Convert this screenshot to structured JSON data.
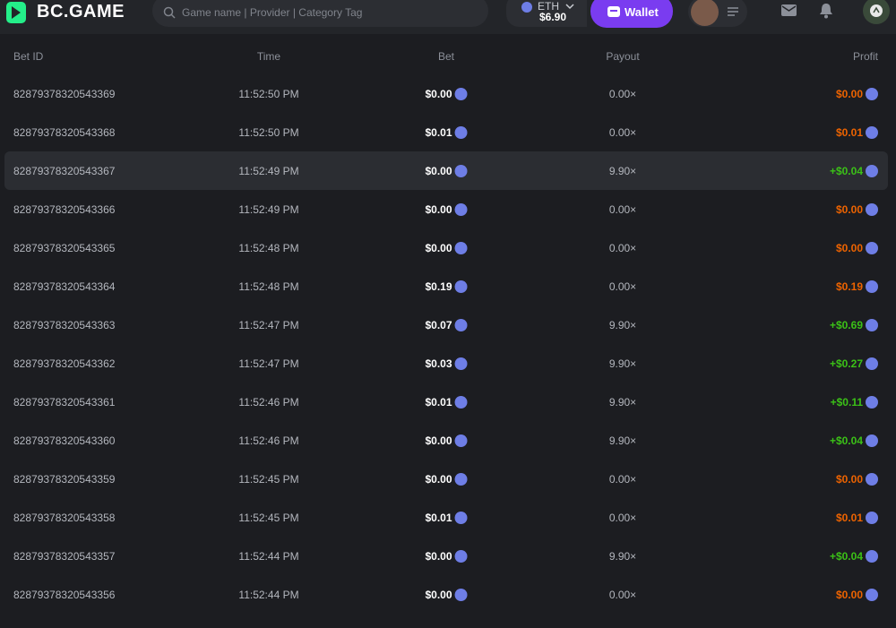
{
  "header": {
    "logo": "BC.GAME",
    "search_placeholder": "Game name | Provider | Category Tag",
    "currency": "ETH",
    "balance": "$6.90",
    "wallet_button": "Wallet"
  },
  "table": {
    "columns": [
      "Bet ID",
      "Time",
      "Bet",
      "Payout",
      "Profit"
    ],
    "rows": [
      [
        "82879378320543369",
        "11:52:50 PM",
        "$0.00",
        "0.00×",
        "$0.00"
      ],
      [
        "82879378320543368",
        "11:52:50 PM",
        "$0.01",
        "0.00×",
        "$0.01"
      ],
      [
        "82879378320543367",
        "11:52:49 PM",
        "$0.00",
        "9.90×",
        "+$0.04"
      ],
      [
        "82879378320543366",
        "11:52:49 PM",
        "$0.00",
        "0.00×",
        "$0.00"
      ],
      [
        "82879378320543365",
        "11:52:48 PM",
        "$0.00",
        "0.00×",
        "$0.00"
      ],
      [
        "82879378320543364",
        "11:52:48 PM",
        "$0.19",
        "0.00×",
        "$0.19"
      ],
      [
        "82879378320543363",
        "11:52:47 PM",
        "$0.07",
        "9.90×",
        "+$0.69"
      ],
      [
        "82879378320543362",
        "11:52:47 PM",
        "$0.03",
        "9.90×",
        "+$0.27"
      ],
      [
        "82879378320543361",
        "11:52:46 PM",
        "$0.01",
        "9.90×",
        "+$0.11"
      ],
      [
        "82879378320543360",
        "11:52:46 PM",
        "$0.00",
        "9.90×",
        "+$0.04"
      ],
      [
        "82879378320543359",
        "11:52:45 PM",
        "$0.00",
        "0.00×",
        "$0.00"
      ],
      [
        "82879378320543358",
        "11:52:45 PM",
        "$0.01",
        "0.00×",
        "$0.01"
      ],
      [
        "82879378320543357",
        "11:52:44 PM",
        "$0.00",
        "9.90×",
        "+$0.04"
      ],
      [
        "82879378320543356",
        "11:52:44 PM",
        "$0.00",
        "0.00×",
        "$0.00"
      ]
    ],
    "highlighted_row": 2
  }
}
